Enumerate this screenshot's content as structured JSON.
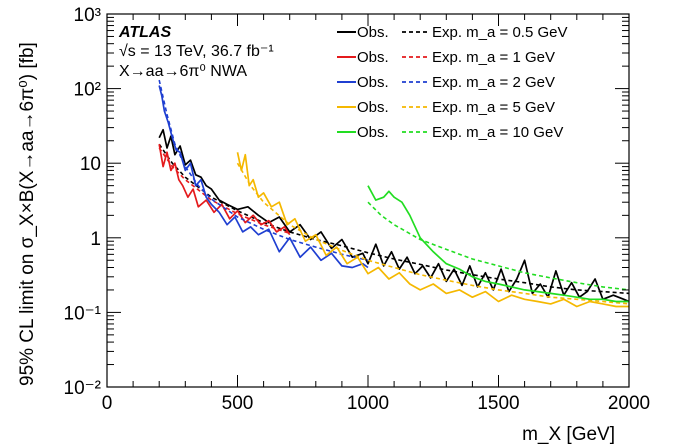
{
  "chart_data": {
    "type": "line",
    "annotations": {
      "experiment": "ATLAS",
      "energy": "√s = 13 TeV, 36.7 fb⁻¹",
      "process": "X→aa→6π⁰ NWA"
    },
    "xlabel": "m_X [GeV]",
    "ylabel": "95% CL limit on σ_X×B(X→aa→6π⁰) [fb]",
    "xlim": [
      0,
      2000
    ],
    "ylim": [
      0.01,
      1000
    ],
    "yscale": "log",
    "x_ticks": [
      0,
      500,
      1000,
      1500,
      2000
    ],
    "y_ticks": [
      {
        "value": 0.01,
        "label": "10⁻²"
      },
      {
        "value": 0.1,
        "label": "10⁻¹"
      },
      {
        "value": 1,
        "label": "1"
      },
      {
        "value": 10,
        "label": "10"
      },
      {
        "value": 100,
        "label": "10²"
      },
      {
        "value": 1000,
        "label": "10³"
      }
    ],
    "legend_placement": "top-right",
    "grid": false,
    "series": [
      {
        "name": "Obs. m_a = 0.5 GeV",
        "color": "#000000",
        "style": "solid",
        "x": [
          200,
          215,
          230,
          245,
          260,
          280,
          300,
          320,
          340,
          360,
          380,
          400,
          430,
          460,
          500,
          540,
          580,
          620,
          660,
          700,
          740,
          780,
          820,
          860,
          900,
          940,
          980,
          1000,
          1030,
          1060,
          1090,
          1120,
          1150,
          1180,
          1210,
          1240,
          1270,
          1300,
          1330,
          1360,
          1390,
          1420,
          1450,
          1480,
          1510,
          1540,
          1570,
          1600,
          1630,
          1660,
          1690,
          1720,
          1750,
          1780,
          1810,
          1840,
          1870,
          1900,
          1940,
          1980,
          2000
        ],
        "y": [
          22,
          28,
          16,
          23,
          13,
          17,
          9.5,
          11,
          7,
          6.5,
          5,
          4.5,
          3.2,
          2.8,
          2.4,
          2.6,
          2.0,
          1.6,
          1.9,
          1.2,
          1.5,
          0.95,
          1.2,
          0.72,
          0.95,
          0.55,
          0.62,
          0.45,
          0.82,
          0.42,
          0.65,
          0.38,
          0.55,
          0.33,
          0.42,
          0.29,
          0.45,
          0.26,
          0.38,
          0.23,
          0.42,
          0.22,
          0.34,
          0.2,
          0.38,
          0.19,
          0.28,
          0.5,
          0.18,
          0.24,
          0.16,
          0.36,
          0.17,
          0.25,
          0.16,
          0.19,
          0.28,
          0.15,
          0.17,
          0.15,
          0.14
        ]
      },
      {
        "name": "Exp. m_a = 0.5 GeV",
        "color": "#000000",
        "style": "dashed",
        "x": [
          200,
          250,
          300,
          400,
          500,
          600,
          700,
          800,
          900,
          1000,
          1100,
          1200,
          1300,
          1400,
          1500,
          1600,
          1700,
          1800,
          1900,
          2000
        ],
        "y": [
          18,
          10,
          6.5,
          3.5,
          2.3,
          1.6,
          1.2,
          0.95,
          0.78,
          0.63,
          0.52,
          0.44,
          0.37,
          0.32,
          0.28,
          0.25,
          0.22,
          0.2,
          0.19,
          0.18
        ]
      },
      {
        "name": "Obs. m_a = 1 GeV",
        "color": "#e41a1c",
        "style": "solid",
        "x": [
          200,
          215,
          230,
          245,
          260,
          275,
          290,
          310,
          330,
          350,
          380,
          410,
          440,
          470,
          500,
          530,
          560,
          590,
          620,
          650,
          680,
          700
        ],
        "y": [
          18,
          9,
          14,
          8,
          10,
          6,
          5,
          3.5,
          4.5,
          2.6,
          3.2,
          2.2,
          2.8,
          1.8,
          2.3,
          1.6,
          2.0,
          1.5,
          1.7,
          1.2,
          1.4,
          1.1
        ]
      },
      {
        "name": "Exp. m_a = 1 GeV",
        "color": "#e41a1c",
        "style": "dashed",
        "x": [
          200,
          250,
          300,
          400,
          500,
          600,
          700
        ],
        "y": [
          16,
          9,
          6,
          3.2,
          2.1,
          1.5,
          1.15
        ]
      },
      {
        "name": "Obs. m_a = 2 GeV",
        "color": "#1f3fd1",
        "style": "solid",
        "x": [
          200,
          210,
          220,
          235,
          250,
          265,
          280,
          300,
          320,
          340,
          360,
          380,
          400,
          430,
          460,
          490,
          520,
          550,
          580,
          620,
          660,
          700,
          740,
          780,
          820,
          860,
          900,
          940,
          980,
          1000
        ],
        "y": [
          110,
          80,
          50,
          35,
          22,
          15,
          14,
          8,
          10,
          5,
          6,
          3.5,
          2.8,
          2.2,
          1.5,
          1.9,
          1.2,
          1.4,
          1.1,
          1.3,
          0.65,
          1.0,
          0.55,
          0.75,
          0.5,
          0.62,
          0.42,
          0.4,
          0.45,
          0.4
        ]
      },
      {
        "name": "Exp. m_a = 2 GeV",
        "color": "#1f3fd1",
        "style": "dashed",
        "x": [
          200,
          230,
          260,
          300,
          350,
          400,
          500,
          600,
          700,
          800,
          900,
          1000
        ],
        "y": [
          130,
          45,
          18,
          9,
          5,
          3.3,
          1.9,
          1.3,
          0.95,
          0.75,
          0.6,
          0.5
        ]
      },
      {
        "name": "Obs. m_a = 5 GeV",
        "color": "#f5b800",
        "style": "solid",
        "x": [
          500,
          515,
          530,
          545,
          560,
          580,
          600,
          630,
          660,
          690,
          720,
          760,
          800,
          840,
          880,
          920,
          960,
          1000,
          1040,
          1080,
          1120,
          1160,
          1200,
          1250,
          1300,
          1350,
          1400,
          1450,
          1500,
          1550,
          1600,
          1650,
          1700,
          1750,
          1800,
          1850,
          1900,
          1950,
          2000
        ],
        "y": [
          14,
          8,
          13,
          5,
          6,
          3.5,
          4.0,
          2.6,
          3.0,
          1.5,
          1.8,
          0.9,
          1.1,
          0.58,
          0.75,
          0.45,
          0.55,
          0.33,
          0.4,
          0.28,
          0.34,
          0.24,
          0.2,
          0.24,
          0.18,
          0.2,
          0.16,
          0.19,
          0.14,
          0.17,
          0.15,
          0.14,
          0.13,
          0.15,
          0.12,
          0.14,
          0.13,
          0.12,
          0.12
        ]
      },
      {
        "name": "Exp. m_a = 5 GeV",
        "color": "#f5b800",
        "style": "dashed",
        "x": [
          500,
          550,
          600,
          700,
          800,
          900,
          1000,
          1100,
          1200,
          1300,
          1400,
          1500,
          1600,
          1700,
          1800,
          1900,
          2000
        ],
        "y": [
          10,
          5,
          3,
          1.5,
          0.95,
          0.68,
          0.5,
          0.4,
          0.32,
          0.27,
          0.23,
          0.2,
          0.18,
          0.16,
          0.15,
          0.14,
          0.13
        ]
      },
      {
        "name": "Obs. m_a = 10 GeV",
        "color": "#22dd22",
        "style": "solid",
        "x": [
          1000,
          1030,
          1060,
          1080,
          1100,
          1130,
          1160,
          1200,
          1250,
          1300,
          1350,
          1400,
          1450,
          1500,
          1550,
          1600,
          1650,
          1700,
          1750,
          1800,
          1850,
          1900,
          1950,
          2000
        ],
        "y": [
          5.0,
          3.2,
          3.5,
          4.2,
          3.5,
          3.0,
          2.0,
          1.0,
          0.65,
          0.45,
          0.38,
          0.3,
          0.26,
          0.24,
          0.22,
          0.2,
          0.19,
          0.18,
          0.17,
          0.16,
          0.15,
          0.15,
          0.14,
          0.14
        ]
      },
      {
        "name": "Exp. m_a = 10 GeV",
        "color": "#22dd22",
        "style": "dashed",
        "x": [
          1000,
          1050,
          1100,
          1200,
          1300,
          1400,
          1500,
          1600,
          1700,
          1800,
          1900,
          2000
        ],
        "y": [
          3.0,
          2.0,
          1.5,
          0.95,
          0.7,
          0.52,
          0.42,
          0.34,
          0.29,
          0.25,
          0.22,
          0.2
        ]
      }
    ]
  }
}
